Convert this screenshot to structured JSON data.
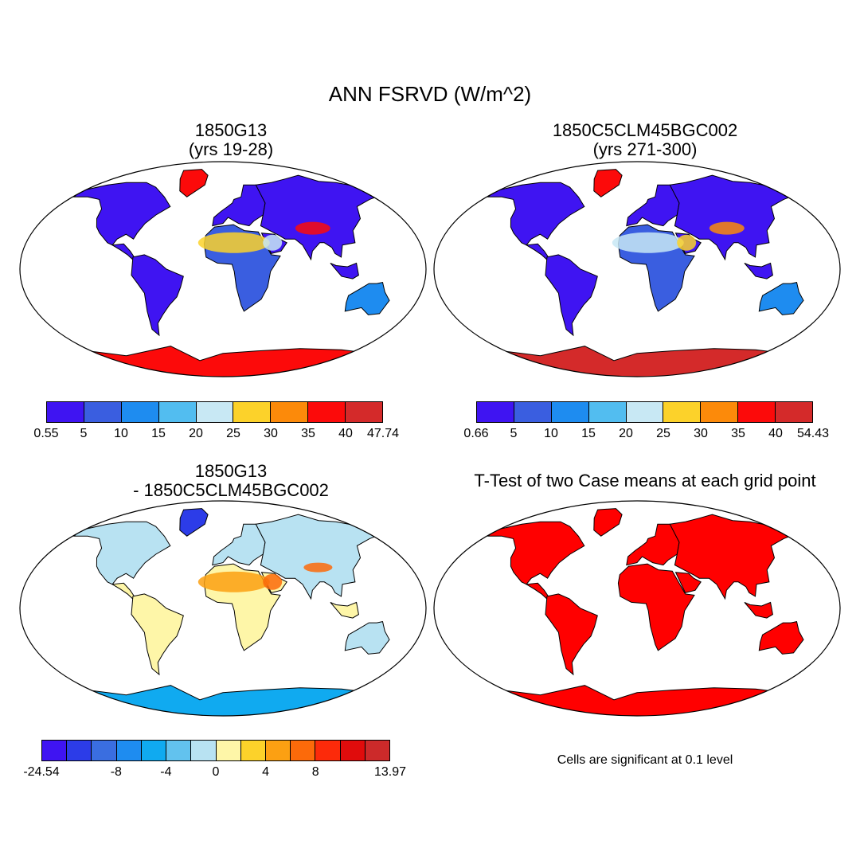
{
  "title": "ANN FSRVD (W/m^2)",
  "panels": [
    {
      "id": "case1",
      "title_line1": "1850G13",
      "title_line2": "(yrs 19-28)"
    },
    {
      "id": "case2",
      "title_line1": "1850C5CLM45BGC002",
      "title_line2": "(yrs 271-300)"
    },
    {
      "id": "diff",
      "title_line1": "1850G13",
      "title_line2": "- 1850C5CLM45BGC002"
    },
    {
      "id": "ttest",
      "title_line1": "T-Test of two Case means at each grid point",
      "title_line2": ""
    }
  ],
  "colorbars": {
    "case1": {
      "colors": [
        "#3f14f2",
        "#3a5ee0",
        "#1e8cf0",
        "#52bdf0",
        "#c8e8f4",
        "#fcd22a",
        "#fc8a0a",
        "#fc0a0a",
        "#d42a2a"
      ],
      "labels": [
        "0.55",
        "5",
        "10",
        "15",
        "20",
        "25",
        "30",
        "35",
        "40",
        "47.74"
      ]
    },
    "case2": {
      "colors": [
        "#3f14f2",
        "#3a5ee0",
        "#1e8cf0",
        "#52bdf0",
        "#c8e8f4",
        "#fcd22a",
        "#fc8a0a",
        "#fc0a0a",
        "#d42a2a"
      ],
      "labels": [
        "0.66",
        "5",
        "10",
        "15",
        "20",
        "25",
        "30",
        "35",
        "40",
        "54.43"
      ]
    },
    "diff": {
      "colors": [
        "#3f14f2",
        "#2c3ce8",
        "#3a6ee0",
        "#1e8cf0",
        "#10aaf0",
        "#62c2ee",
        "#b8e2f2",
        "#fef6a8",
        "#fcd22a",
        "#fca012",
        "#fc6a0a",
        "#fc2a0a",
        "#e00c0c",
        "#cc2a2a"
      ],
      "labels": [
        "-24.54",
        "-8",
        "-4",
        "0",
        "4",
        "8",
        "13.97"
      ]
    }
  },
  "significance_note": "Cells are significant at 0.1 level",
  "colors": {
    "significant": "#ff0000",
    "coastline": "#000000"
  }
}
